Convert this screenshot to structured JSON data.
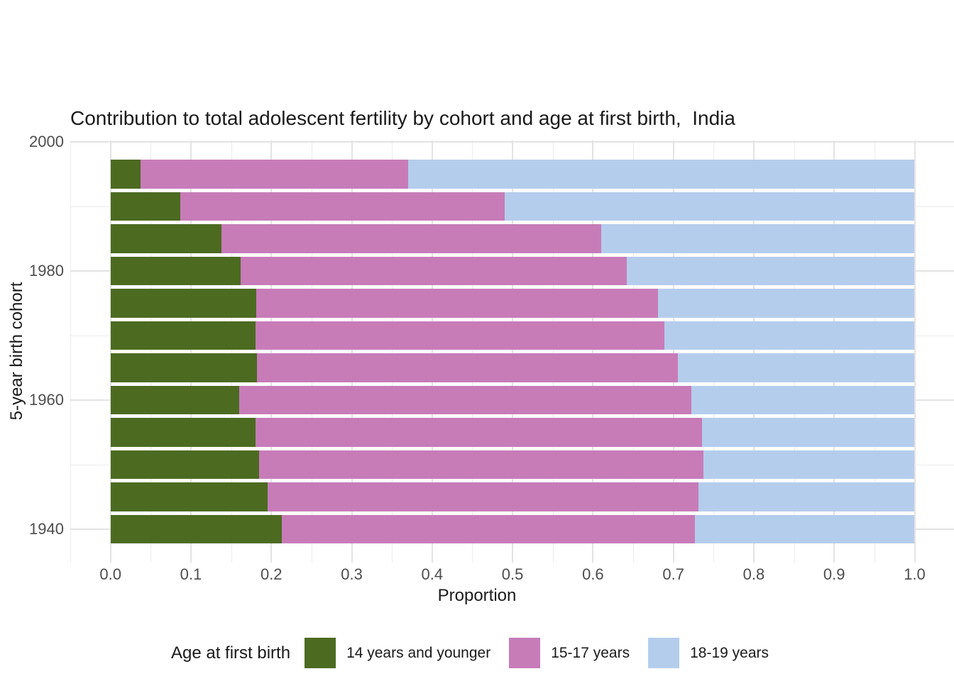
{
  "title": "Contribution to total adolescent fertility by cohort and age at first birth,  India",
  "axes": {
    "x_title": "Proportion",
    "y_title": "5-year birth cohort"
  },
  "legend": {
    "title": "Age at first birth"
  },
  "colors": {
    "green": "#4c6b21",
    "pink": "#c77cb8",
    "blue": "#b5cdec",
    "grid_major": "#e3e3e3",
    "grid_minor": "#ececec",
    "tick_text": "#4d4d4d",
    "title_text": "#1a1a1a"
  },
  "chart_data": {
    "type": "bar",
    "orientation": "horizontal",
    "stacked": true,
    "title": "Contribution to total adolescent fertility by cohort and age at first birth,  India",
    "xlabel": "Proportion",
    "ylabel": "5-year birth cohort",
    "xlim": [
      -0.05,
      1.05
    ],
    "ylim": [
      1934.8,
      2000.2
    ],
    "grid": true,
    "legend_position": "bottom",
    "bar_thickness_years": 4.5,
    "cohort_center_years": [
      1995,
      1990,
      1985,
      1980,
      1975,
      1970,
      1965,
      1960,
      1955,
      1950,
      1945,
      1940
    ],
    "series": [
      {
        "name": "14 years and younger",
        "color": "#4c6b21",
        "values": [
          0.037,
          0.087,
          0.138,
          0.162,
          0.181,
          0.18,
          0.182,
          0.16,
          0.18,
          0.185,
          0.195,
          0.213
        ]
      },
      {
        "name": "15-17 years",
        "color": "#c77cb8",
        "values": [
          0.333,
          0.403,
          0.472,
          0.48,
          0.5,
          0.509,
          0.524,
          0.562,
          0.556,
          0.552,
          0.536,
          0.514
        ]
      },
      {
        "name": "18-19 years",
        "color": "#b5cdec",
        "values": [
          0.63,
          0.51,
          0.39,
          0.358,
          0.319,
          0.311,
          0.294,
          0.278,
          0.264,
          0.263,
          0.269,
          0.273
        ]
      }
    ],
    "x_tick_values": [
      0.0,
      0.1,
      0.2,
      0.3,
      0.4,
      0.5,
      0.6,
      0.7,
      0.8,
      0.9,
      1.0
    ],
    "x_tick_labels": [
      "0.0",
      "0.1",
      "0.2",
      "0.3",
      "0.4",
      "0.5",
      "0.6",
      "0.7",
      "0.8",
      "0.9",
      "1.0"
    ],
    "x_minor_values": [
      -0.05,
      0.05,
      0.15,
      0.25,
      0.35,
      0.45,
      0.55,
      0.65,
      0.75,
      0.85,
      0.95,
      1.05
    ],
    "y_tick_values": [
      2000,
      1980,
      1960,
      1940
    ],
    "y_tick_labels": [
      "2000",
      "1980",
      "1960",
      "1940"
    ],
    "y_minor_values": [
      1990,
      1970,
      1950
    ]
  }
}
